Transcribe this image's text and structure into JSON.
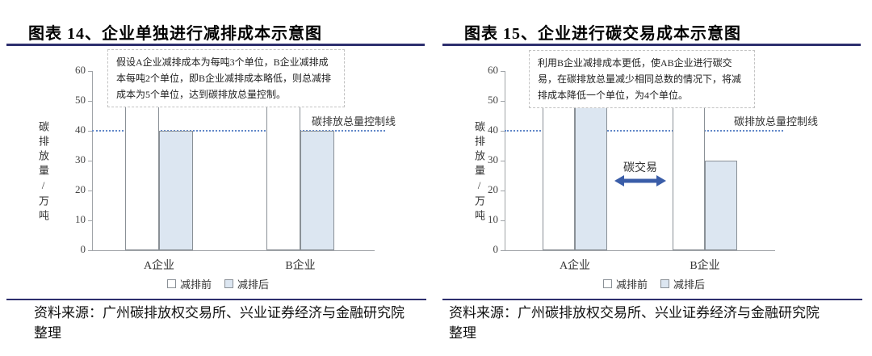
{
  "colors": {
    "rule_navy": "#2d2f6e",
    "bar_after_fill": "#dce6f1",
    "bar_border": "#8a9096",
    "control_line": "#6187c8",
    "arrow": "#3a5da8"
  },
  "chart_data": [
    {
      "type": "bar",
      "title": "图表 14、企业单独进行减排成本示意图",
      "annotation": "假设A企业减排成本为每吨3个单位，B企业减排成本每吨2个单位，即B企业减排成本略低，则总减排成本为5个单位，达到碳排放总量控制。",
      "categories": [
        "A企业",
        "B企业"
      ],
      "series": [
        {
          "name": "减排前",
          "values": [
            50,
            50
          ],
          "fill": "#ffffff"
        },
        {
          "name": "减排后",
          "values": [
            40,
            40
          ],
          "fill": "#dce6f1"
        }
      ],
      "ylabel": "碳排放量/万吨",
      "yticks": [
        0,
        10,
        20,
        30,
        40,
        50,
        60
      ],
      "ylim": [
        0,
        60
      ],
      "grid": false,
      "legend_position": "bottom",
      "control_line": {
        "value": 40,
        "label": "碳排放总量控制线"
      },
      "source": "资料来源：广州碳排放权交易所、兴业证券经济与金融研究院整理"
    },
    {
      "type": "bar",
      "title": "图表 15、企业进行碳交易成本示意图",
      "annotation": "利用B企业减排成本更低，使AB企业进行碳交易，在碳排放总量减少相同总数的情况下，将减排成本降低一个单位，为4个单位。",
      "categories": [
        "A企业",
        "B企业"
      ],
      "series": [
        {
          "name": "减排前",
          "values": [
            50,
            50
          ],
          "fill": "#ffffff"
        },
        {
          "name": "减排后",
          "values": [
            50,
            30
          ],
          "fill": "#dce6f1"
        }
      ],
      "ylabel": "碳排放量/万吨",
      "yticks": [
        0,
        10,
        20,
        30,
        40,
        50,
        60
      ],
      "ylim": [
        0,
        60
      ],
      "grid": false,
      "legend_position": "bottom",
      "control_line": {
        "value": 40,
        "label": "碳排放总量控制线"
      },
      "arrow": {
        "label": "碳交易",
        "direction": "double"
      },
      "source": "资料来源：广州碳排放权交易所、兴业证券经济与金融研究院整理"
    }
  ]
}
